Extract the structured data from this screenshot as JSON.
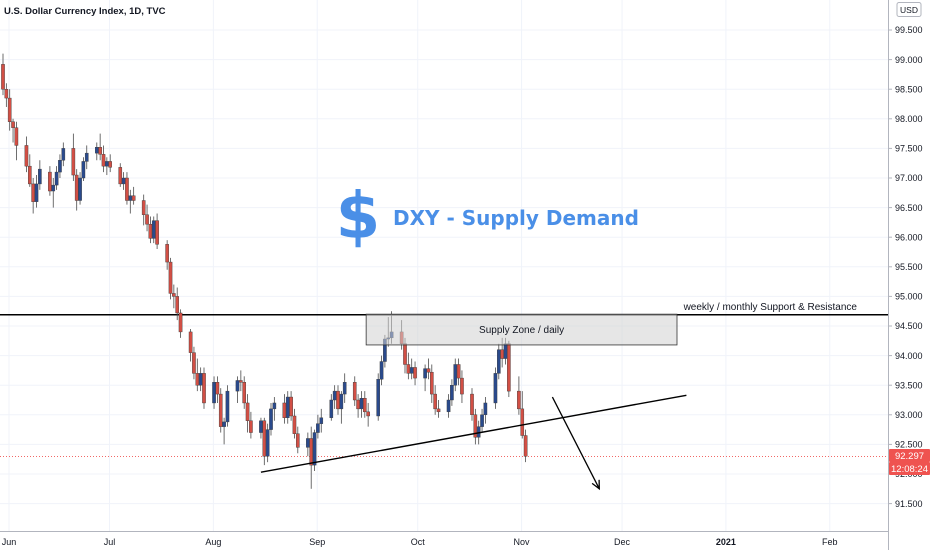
{
  "header": {
    "title": "U.S. Dollar Currency Index, 1D, TVC"
  },
  "currency_badge": "USD",
  "chart_data": {
    "type": "candlestick",
    "title": "U.S. Dollar Currency Index, 1D, TVC",
    "currency": "USD",
    "y_axis": {
      "range": [
        91.2,
        99.9
      ],
      "ticks": [
        "99.500",
        "99.000",
        "98.500",
        "98.000",
        "97.500",
        "97.000",
        "96.500",
        "96.000",
        "95.500",
        "95.000",
        "94.500",
        "94.000",
        "93.500",
        "93.000",
        "92.500",
        "92.000",
        "91.500"
      ]
    },
    "x_axis": {
      "ticks": [
        "Jun",
        "Jul",
        "Aug",
        "Sep",
        "Oct",
        "Nov",
        "Dec",
        "2021",
        "Feb"
      ]
    },
    "colors": {
      "up": "#2a4a8c",
      "down": "#d24f45",
      "current_price_tag": "#ef5350",
      "heading": "#4a8fe7"
    },
    "annotations": {
      "heading": "DXY - Supply Demand",
      "heading_icon": "dollar-sign",
      "supply_zone": {
        "label": "Supply Zone / daily",
        "low": 94.18,
        "high": 94.7
      },
      "support_resistance": {
        "label": "weekly / monthly Support & Resistance",
        "price": 94.69
      },
      "trendline": {
        "from": {
          "date": "2020-08-17",
          "price": 92.03
        },
        "to": {
          "date": "2020-12-22",
          "price": 93.33
        }
      },
      "arrow": {
        "from": {
          "date": "2020-11-12",
          "price": 93.3
        },
        "to": {
          "date": "2020-11-26",
          "price": 91.75
        }
      },
      "current_price": "92.297",
      "countdown": "12:08:24"
    },
    "candles": [
      [
        "2020-06-01",
        98.92,
        99.1,
        98.4,
        98.5
      ],
      [
        "2020-06-02",
        98.5,
        98.6,
        98.2,
        98.35
      ],
      [
        "2020-06-03",
        98.35,
        98.5,
        97.8,
        97.95
      ],
      [
        "2020-06-04",
        97.95,
        98.0,
        97.6,
        97.85
      ],
      [
        "2020-06-05",
        97.85,
        97.95,
        97.3,
        97.55
      ],
      [
        "2020-06-08",
        97.55,
        97.7,
        97.1,
        97.2
      ],
      [
        "2020-06-09",
        97.2,
        97.4,
        96.85,
        96.9
      ],
      [
        "2020-06-10",
        96.9,
        97.0,
        96.4,
        96.6
      ],
      [
        "2020-06-11",
        96.6,
        97.05,
        96.5,
        96.9
      ],
      [
        "2020-06-12",
        96.9,
        97.3,
        96.8,
        97.15
      ],
      [
        "2020-06-15",
        97.1,
        97.2,
        96.7,
        96.78
      ],
      [
        "2020-06-16",
        96.78,
        97.0,
        96.5,
        96.88
      ],
      [
        "2020-06-17",
        96.88,
        97.2,
        96.8,
        97.1
      ],
      [
        "2020-06-18",
        97.1,
        97.4,
        97.0,
        97.3
      ],
      [
        "2020-06-19",
        97.3,
        97.6,
        97.2,
        97.5
      ],
      [
        "2020-06-22",
        97.5,
        97.75,
        96.95,
        97.05
      ],
      [
        "2020-06-23",
        97.05,
        97.15,
        96.45,
        96.62
      ],
      [
        "2020-06-24",
        96.62,
        97.1,
        96.55,
        97.0
      ],
      [
        "2020-06-25",
        97.0,
        97.35,
        96.95,
        97.28
      ],
      [
        "2020-06-26",
        97.28,
        97.55,
        97.15,
        97.42
      ],
      [
        "2020-06-29",
        97.42,
        97.6,
        97.3,
        97.52
      ],
      [
        "2020-06-30",
        97.52,
        97.75,
        97.3,
        97.4
      ],
      [
        "2020-07-01",
        97.4,
        97.55,
        97.1,
        97.2
      ],
      [
        "2020-07-02",
        97.2,
        97.35,
        97.05,
        97.28
      ],
      [
        "2020-07-03",
        97.28,
        97.4,
        97.1,
        97.18
      ],
      [
        "2020-07-06",
        97.18,
        97.25,
        96.85,
        96.9
      ],
      [
        "2020-07-07",
        96.9,
        97.1,
        96.8,
        97.0
      ],
      [
        "2020-07-08",
        97.0,
        97.1,
        96.55,
        96.62
      ],
      [
        "2020-07-09",
        96.62,
        96.8,
        96.4,
        96.7
      ],
      [
        "2020-07-10",
        96.7,
        96.85,
        96.55,
        96.62
      ],
      [
        "2020-07-13",
        96.62,
        96.72,
        96.2,
        96.38
      ],
      [
        "2020-07-14",
        96.38,
        96.55,
        96.1,
        96.22
      ],
      [
        "2020-07-15",
        96.22,
        96.35,
        95.9,
        95.98
      ],
      [
        "2020-07-16",
        95.98,
        96.35,
        95.9,
        96.28
      ],
      [
        "2020-07-17",
        96.28,
        96.4,
        95.8,
        95.88
      ],
      [
        "2020-07-20",
        95.88,
        95.95,
        95.45,
        95.58
      ],
      [
        "2020-07-21",
        95.58,
        95.65,
        94.95,
        95.05
      ],
      [
        "2020-07-22",
        95.05,
        95.2,
        94.8,
        95.0
      ],
      [
        "2020-07-23",
        95.0,
        95.15,
        94.6,
        94.72
      ],
      [
        "2020-07-24",
        94.72,
        94.78,
        94.3,
        94.4
      ],
      [
        "2020-07-27",
        94.4,
        94.45,
        93.9,
        94.05
      ],
      [
        "2020-07-28",
        94.05,
        94.15,
        93.6,
        93.7
      ],
      [
        "2020-07-29",
        93.7,
        93.95,
        93.4,
        93.5
      ],
      [
        "2020-07-30",
        93.5,
        93.8,
        93.4,
        93.7
      ],
      [
        "2020-07-31",
        93.7,
        93.8,
        93.1,
        93.2
      ],
      [
        "2020-08-03",
        93.2,
        93.65,
        93.1,
        93.55
      ],
      [
        "2020-08-04",
        93.55,
        93.65,
        93.2,
        93.35
      ],
      [
        "2020-08-05",
        93.35,
        93.45,
        92.7,
        92.8
      ],
      [
        "2020-08-06",
        92.8,
        92.95,
        92.5,
        92.88
      ],
      [
        "2020-08-07",
        92.88,
        93.5,
        92.8,
        93.4
      ],
      [
        "2020-08-10",
        93.4,
        93.65,
        93.2,
        93.58
      ],
      [
        "2020-08-11",
        93.58,
        93.75,
        93.4,
        93.55
      ],
      [
        "2020-08-12",
        93.55,
        93.65,
        93.1,
        93.2
      ],
      [
        "2020-08-13",
        93.2,
        93.35,
        92.7,
        92.9
      ],
      [
        "2020-08-14",
        92.9,
        93.05,
        92.6,
        92.7
      ],
      [
        "2020-08-17",
        92.7,
        92.95,
        92.6,
        92.9
      ],
      [
        "2020-08-18",
        92.9,
        92.95,
        92.15,
        92.3
      ],
      [
        "2020-08-19",
        92.3,
        92.85,
        92.2,
        92.75
      ],
      [
        "2020-08-20",
        92.75,
        93.2,
        92.65,
        93.1
      ],
      [
        "2020-08-21",
        93.1,
        93.3,
        92.9,
        93.2
      ],
      [
        "2020-08-24",
        93.2,
        93.35,
        92.85,
        92.95
      ],
      [
        "2020-08-25",
        92.95,
        93.4,
        92.85,
        93.3
      ],
      [
        "2020-08-26",
        93.3,
        93.4,
        92.9,
        92.98
      ],
      [
        "2020-08-27",
        92.98,
        93.1,
        92.6,
        92.68
      ],
      [
        "2020-08-28",
        92.68,
        92.8,
        92.35,
        92.45
      ],
      [
        "2020-08-31",
        92.45,
        92.7,
        92.3,
        92.6
      ],
      [
        "2020-09-01",
        92.6,
        92.8,
        91.75,
        92.15
      ],
      [
        "2020-09-02",
        92.15,
        92.75,
        92.05,
        92.7
      ],
      [
        "2020-09-03",
        92.7,
        93.0,
        92.6,
        92.85
      ],
      [
        "2020-09-04",
        92.85,
        93.1,
        92.7,
        92.95
      ],
      [
        "2020-09-07",
        92.95,
        93.35,
        92.9,
        93.25
      ],
      [
        "2020-09-08",
        93.25,
        93.5,
        93.1,
        93.4
      ],
      [
        "2020-09-09",
        93.4,
        93.5,
        93.0,
        93.1
      ],
      [
        "2020-09-10",
        93.1,
        93.4,
        92.85,
        93.35
      ],
      [
        "2020-09-11",
        93.35,
        93.7,
        93.2,
        93.55
      ],
      [
        "2020-09-14",
        93.55,
        93.65,
        93.15,
        93.25
      ],
      [
        "2020-09-15",
        93.25,
        93.35,
        92.95,
        93.1
      ],
      [
        "2020-09-16",
        93.1,
        93.4,
        92.95,
        93.28
      ],
      [
        "2020-09-17",
        93.28,
        93.4,
        92.95,
        93.05
      ],
      [
        "2020-09-18",
        93.05,
        93.2,
        92.8,
        92.98
      ],
      [
        "2020-09-21",
        92.98,
        93.7,
        92.9,
        93.6
      ],
      [
        "2020-09-22",
        93.6,
        94.0,
        93.5,
        93.9
      ],
      [
        "2020-09-23",
        93.9,
        94.35,
        93.8,
        94.28
      ],
      [
        "2020-09-24",
        94.28,
        94.65,
        94.15,
        94.3
      ],
      [
        "2020-09-25",
        94.3,
        94.75,
        94.2,
        94.4
      ],
      [
        "2020-09-28",
        94.4,
        94.6,
        94.1,
        94.2
      ],
      [
        "2020-09-29",
        94.2,
        94.3,
        93.7,
        93.85
      ],
      [
        "2020-09-30",
        93.85,
        94.05,
        93.6,
        93.7
      ],
      [
        "2020-10-01",
        93.7,
        93.95,
        93.6,
        93.8
      ],
      [
        "2020-10-02",
        93.8,
        93.9,
        93.5,
        93.62
      ],
      [
        "2020-10-05",
        93.62,
        93.85,
        93.4,
        93.78
      ],
      [
        "2020-10-06",
        93.78,
        93.95,
        93.6,
        93.72
      ],
      [
        "2020-10-07",
        93.72,
        93.85,
        93.2,
        93.35
      ],
      [
        "2020-10-08",
        93.35,
        93.5,
        93.0,
        93.1
      ],
      [
        "2020-10-09",
        93.1,
        93.25,
        92.95,
        93.05
      ],
      [
        "2020-10-12",
        93.05,
        93.35,
        92.95,
        93.25
      ],
      [
        "2020-10-13",
        93.25,
        93.6,
        93.15,
        93.5
      ],
      [
        "2020-10-14",
        93.5,
        93.95,
        93.4,
        93.85
      ],
      [
        "2020-10-15",
        93.85,
        93.95,
        93.5,
        93.62
      ],
      [
        "2020-10-16",
        93.62,
        93.75,
        93.2,
        93.35
      ],
      [
        "2020-10-19",
        93.35,
        93.45,
        92.9,
        93.0
      ],
      [
        "2020-10-20",
        93.0,
        93.1,
        92.5,
        92.62
      ],
      [
        "2020-10-21",
        92.62,
        92.9,
        92.5,
        92.8
      ],
      [
        "2020-10-22",
        92.8,
        93.1,
        92.7,
        93.0
      ],
      [
        "2020-10-23",
        93.0,
        93.3,
        92.85,
        93.2
      ],
      [
        "2020-10-26",
        93.2,
        93.8,
        93.1,
        93.7
      ],
      [
        "2020-10-27",
        93.7,
        94.2,
        93.6,
        94.1
      ],
      [
        "2020-10-28",
        94.1,
        94.3,
        93.8,
        93.95
      ],
      [
        "2020-10-29",
        93.95,
        94.3,
        93.85,
        94.2
      ],
      [
        "2020-10-30",
        94.2,
        94.25,
        93.3,
        93.4
      ],
      [
        "2020-11-02",
        93.4,
        93.65,
        93.0,
        93.1
      ],
      [
        "2020-11-03",
        93.1,
        93.4,
        92.6,
        92.65
      ],
      [
        "2020-11-04",
        92.65,
        92.75,
        92.2,
        92.3
      ]
    ]
  }
}
